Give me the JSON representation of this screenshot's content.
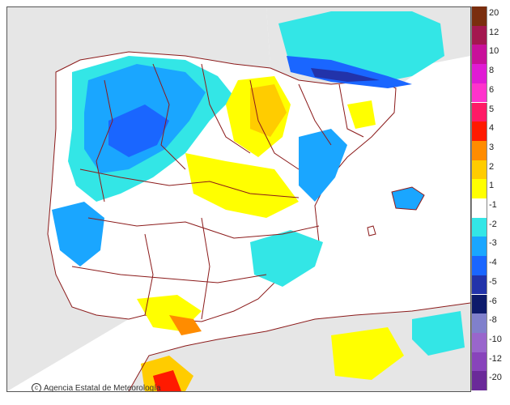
{
  "map": {
    "credit": "Agencia Estatal de Meteorología",
    "credit_icon": "copyright-icon",
    "colors": {
      "sea": "#ffffff",
      "land_outside": "#e6e6e6",
      "borders": "#8b1a1a",
      "coast": "#8b1a1a"
    }
  },
  "legend": {
    "entries": [
      {
        "label": "20",
        "color": "#7a2e0e"
      },
      {
        "label": "12",
        "color": "#a3174f"
      },
      {
        "label": "10",
        "color": "#c8109a"
      },
      {
        "label": "8",
        "color": "#e01bd4"
      },
      {
        "label": "6",
        "color": "#ff33cc"
      },
      {
        "label": "5",
        "color": "#ff1a66"
      },
      {
        "label": "4",
        "color": "#ff1a00"
      },
      {
        "label": "3",
        "color": "#ff8c00"
      },
      {
        "label": "2",
        "color": "#ffcc00"
      },
      {
        "label": "1",
        "color": "#ffff00"
      },
      {
        "label": "-1",
        "color": "#ffffff"
      },
      {
        "label": "-2",
        "color": "#33e6e6"
      },
      {
        "label": "-3",
        "color": "#1aa6ff"
      },
      {
        "label": "-4",
        "color": "#1a66ff"
      },
      {
        "label": "-5",
        "color": "#2233aa"
      },
      {
        "label": "-6",
        "color": "#0d1a6b"
      },
      {
        "label": "-8",
        "color": "#8080cc"
      },
      {
        "label": "-10",
        "color": "#9966cc"
      },
      {
        "label": "-12",
        "color": "#8844bb"
      },
      {
        "label": "-20",
        "color": "#6a2a99"
      }
    ]
  }
}
